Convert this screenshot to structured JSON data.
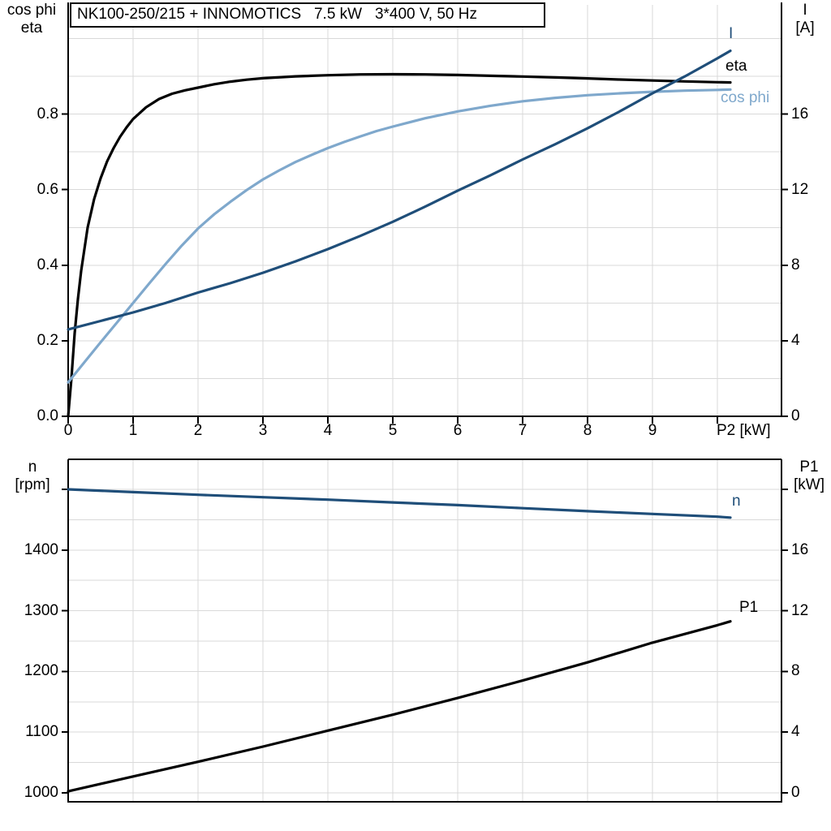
{
  "title_box": {
    "text": "NK100-250/215 + INNOMOTICS   7.5 kW   3*400 V, 50 Hz"
  },
  "colors": {
    "background": "#ffffff",
    "axis": "#000000",
    "grid": "#d9d9d9",
    "black": "#000000",
    "dark_blue": "#1f4e79",
    "light_blue": "#7fa8cc"
  },
  "chart_data": [
    {
      "id": "motor-electrical-plot",
      "type": "line",
      "title": "NK100-250/215 + INNOMOTICS 7.5 kW 3*400 V, 50 Hz",
      "x_axis": {
        "label": "P2 [kW]",
        "range": [
          0,
          11
        ],
        "tick_values": [
          0,
          1,
          2,
          3,
          4,
          5,
          6,
          7,
          8,
          9,
          10
        ],
        "tick_labels": [
          "0",
          "1",
          "2",
          "3",
          "4",
          "5",
          "6",
          "7",
          "8",
          "9",
          ""
        ]
      },
      "left_axis": {
        "label_lines": [
          "cos phi",
          "eta"
        ],
        "range": [
          0,
          1.09
        ],
        "grid_step": 0.1,
        "tick_values": [
          0,
          0.2,
          0.4,
          0.6,
          0.8
        ],
        "tick_labels": [
          "0.0",
          "0.2",
          "0.4",
          "0.6",
          "0.8"
        ]
      },
      "right_axis": {
        "label_lines": [
          "I",
          "[A]"
        ],
        "range": [
          0,
          21.8
        ],
        "tick_values": [
          0,
          4,
          8,
          12,
          16
        ],
        "tick_labels": [
          "0",
          "4",
          "8",
          "12",
          "16"
        ]
      },
      "legend_position": "right-inline",
      "grid": true,
      "series": [
        {
          "name": "eta",
          "color_key": "black",
          "axis": "left",
          "points": [
            [
              0,
              0
            ],
            [
              0.05,
              0.1
            ],
            [
              0.1,
              0.22
            ],
            [
              0.15,
              0.31
            ],
            [
              0.2,
              0.385
            ],
            [
              0.3,
              0.5
            ],
            [
              0.4,
              0.575
            ],
            [
              0.5,
              0.63
            ],
            [
              0.6,
              0.675
            ],
            [
              0.7,
              0.71
            ],
            [
              0.8,
              0.74
            ],
            [
              0.9,
              0.765
            ],
            [
              1,
              0.787
            ],
            [
              1.2,
              0.818
            ],
            [
              1.4,
              0.84
            ],
            [
              1.6,
              0.854
            ],
            [
              1.8,
              0.863
            ],
            [
              2,
              0.87
            ],
            [
              2.25,
              0.879
            ],
            [
              2.5,
              0.886
            ],
            [
              2.75,
              0.891
            ],
            [
              3,
              0.895
            ],
            [
              3.5,
              0.9
            ],
            [
              4,
              0.903
            ],
            [
              4.5,
              0.905
            ],
            [
              5,
              0.9055
            ],
            [
              5.5,
              0.905
            ],
            [
              6,
              0.9035
            ],
            [
              6.5,
              0.9015
            ],
            [
              7,
              0.8995
            ],
            [
              7.5,
              0.897
            ],
            [
              8,
              0.8945
            ],
            [
              8.5,
              0.8915
            ],
            [
              9,
              0.889
            ],
            [
              9.5,
              0.8865
            ],
            [
              10,
              0.8845
            ],
            [
              10.2,
              0.8838
            ]
          ]
        },
        {
          "name": "cos phi",
          "color_key": "light_blue",
          "axis": "left",
          "points": [
            [
              0,
              0.09
            ],
            [
              0.25,
              0.143
            ],
            [
              0.5,
              0.196
            ],
            [
              0.75,
              0.248
            ],
            [
              1,
              0.3
            ],
            [
              1.25,
              0.352
            ],
            [
              1.5,
              0.403
            ],
            [
              1.75,
              0.452
            ],
            [
              2,
              0.497
            ],
            [
              2.25,
              0.535
            ],
            [
              2.5,
              0.568
            ],
            [
              2.75,
              0.599
            ],
            [
              3,
              0.627
            ],
            [
              3.25,
              0.651
            ],
            [
              3.5,
              0.673
            ],
            [
              3.75,
              0.692
            ],
            [
              4,
              0.71
            ],
            [
              4.25,
              0.726
            ],
            [
              4.5,
              0.741
            ],
            [
              4.75,
              0.755
            ],
            [
              5,
              0.767
            ],
            [
              5.5,
              0.789
            ],
            [
              6,
              0.807
            ],
            [
              6.5,
              0.822
            ],
            [
              7,
              0.834
            ],
            [
              7.5,
              0.843
            ],
            [
              8,
              0.85
            ],
            [
              8.5,
              0.855
            ],
            [
              9,
              0.859
            ],
            [
              9.5,
              0.862
            ],
            [
              10,
              0.864
            ],
            [
              10.2,
              0.865
            ]
          ]
        },
        {
          "name": "I",
          "color_key": "dark_blue",
          "axis": "right",
          "points": [
            [
              0,
              4.6
            ],
            [
              0.5,
              5.05
            ],
            [
              1,
              5.5
            ],
            [
              1.5,
              6.0
            ],
            [
              2,
              6.55
            ],
            [
              2.5,
              7.05
            ],
            [
              3,
              7.6
            ],
            [
              3.5,
              8.2
            ],
            [
              4,
              8.85
            ],
            [
              4.5,
              9.55
            ],
            [
              5,
              10.3
            ],
            [
              5.5,
              11.1
            ],
            [
              6,
              11.95
            ],
            [
              6.5,
              12.75
            ],
            [
              7,
              13.6
            ],
            [
              7.5,
              14.4
            ],
            [
              8,
              15.25
            ],
            [
              8.5,
              16.15
            ],
            [
              9,
              17.1
            ],
            [
              9.5,
              18.0
            ],
            [
              10,
              18.95
            ],
            [
              10.2,
              19.35
            ]
          ]
        }
      ]
    },
    {
      "id": "motor-speed-power-plot",
      "type": "line",
      "x_axis": {
        "label": "",
        "range": [
          0,
          11
        ],
        "tick_values": [],
        "tick_labels": []
      },
      "left_axis": {
        "label_lines": [
          "n",
          "[rpm]"
        ],
        "range": [
          985,
          1565
        ],
        "grid_step": 50,
        "tick_values": [
          1000,
          1100,
          1200,
          1300,
          1400,
          1500
        ],
        "tick_labels": [
          "1000",
          "1100",
          "1200",
          "1300",
          "1400",
          ""
        ]
      },
      "right_axis": {
        "label_lines": [
          "P1",
          "[kW]"
        ],
        "range": [
          0,
          22
        ],
        "tick_values": [
          0,
          4,
          8,
          12,
          16,
          20
        ],
        "tick_labels": [
          "0",
          "4",
          "8",
          "12",
          "16",
          ""
        ]
      },
      "grid": true,
      "series": [
        {
          "name": "n",
          "color_key": "dark_blue",
          "axis": "left",
          "points": [
            [
              0,
              1500
            ],
            [
              1,
              1495.5
            ],
            [
              2,
              1491
            ],
            [
              3,
              1487
            ],
            [
              4,
              1483
            ],
            [
              5,
              1478.5
            ],
            [
              6,
              1474
            ],
            [
              7,
              1469
            ],
            [
              8,
              1464
            ],
            [
              9,
              1459.5
            ],
            [
              10,
              1455
            ],
            [
              10.2,
              1453.5
            ]
          ]
        },
        {
          "name": "P1",
          "color_key": "black",
          "axis": "right",
          "points": [
            [
              0,
              0.1
            ],
            [
              1,
              1.08
            ],
            [
              2,
              2.05
            ],
            [
              3,
              3.05
            ],
            [
              4,
              4.1
            ],
            [
              5,
              5.15
            ],
            [
              6,
              6.25
            ],
            [
              7,
              7.4
            ],
            [
              8,
              8.6
            ],
            [
              9,
              9.9
            ],
            [
              10,
              11.05
            ],
            [
              10.2,
              11.3
            ]
          ]
        }
      ]
    }
  ]
}
